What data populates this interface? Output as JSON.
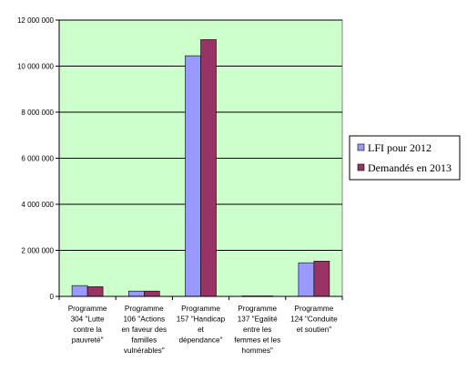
{
  "chart_data": {
    "type": "bar",
    "categories": [
      "Programme 304 \"Lutte contre la pauvreté\"",
      "Programme 106 \"Actions en faveur des familles vulnérables\"",
      "Programme 157 \"Handicap et dépendance\"",
      "Programme 137 \"Egalité entre les femmes et les hommes\"",
      "Programme 124 \"Conduite et soutien\""
    ],
    "category_lines": [
      [
        "Programme",
        "304 \"Lutte",
        "contre la",
        "pauvreté\""
      ],
      [
        "Programme",
        "106 \"Actions",
        "en faveur des",
        "familles",
        "vulnérables\""
      ],
      [
        "Programme",
        "157 \"Handicap",
        "et",
        "dépendance\""
      ],
      [
        "Programme",
        "137 \"Egalité",
        "entre les",
        "femmes et les",
        "hommes\""
      ],
      [
        "Programme",
        "124 \"Conduite",
        "et soutien\""
      ]
    ],
    "series": [
      {
        "name": "LFI pour 2012",
        "color": "#9999ff",
        "values": [
          470000,
          230000,
          10450000,
          20000,
          1460000
        ]
      },
      {
        "name": "Demandés en 2013",
        "color": "#993366",
        "values": [
          420000,
          230000,
          11150000,
          20000,
          1530000
        ]
      }
    ],
    "ylim": [
      0,
      12000000
    ],
    "yticks": [
      "0",
      "2 000 000",
      "4 000 000",
      "6 000 000",
      "8 000 000",
      "10 000 000",
      "12 000 000"
    ],
    "ytick_values": [
      0,
      2000000,
      4000000,
      6000000,
      8000000,
      10000000,
      12000000
    ],
    "plot_background": "#ccffcc",
    "grid": true,
    "legend_position": "right"
  }
}
